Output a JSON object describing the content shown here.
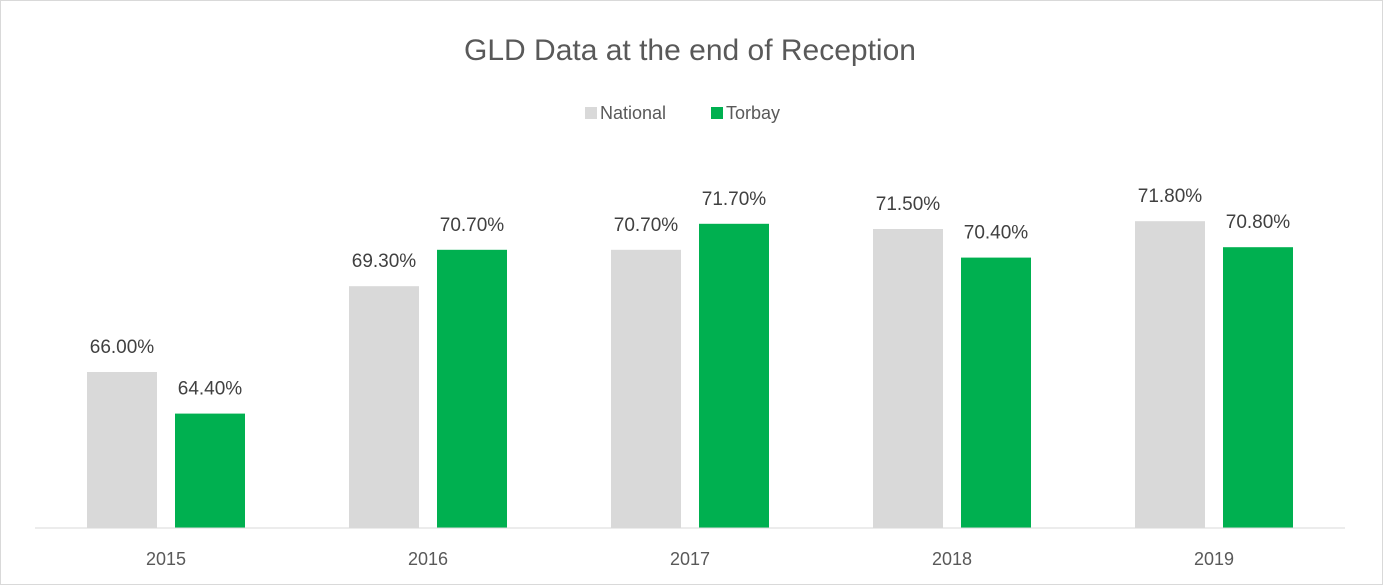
{
  "chart_data": {
    "type": "bar",
    "title": "GLD Data at the end of Reception",
    "categories": [
      "2015",
      "2016",
      "2017",
      "2018",
      "2019"
    ],
    "series": [
      {
        "name": "National",
        "color": "#d9d9d9",
        "values": [
          66.0,
          69.3,
          70.7,
          71.5,
          71.8
        ],
        "value_labels": [
          "66.00%",
          "69.30%",
          "70.70%",
          "71.50%",
          "71.80%"
        ]
      },
      {
        "name": "Torbay",
        "color": "#00b050",
        "values": [
          64.4,
          70.7,
          71.7,
          70.4,
          70.8
        ],
        "value_labels": [
          "64.40%",
          "70.70%",
          "71.70%",
          "70.40%",
          "70.80%"
        ]
      }
    ],
    "ylim": [
      60,
      74
    ],
    "legend": "top"
  }
}
